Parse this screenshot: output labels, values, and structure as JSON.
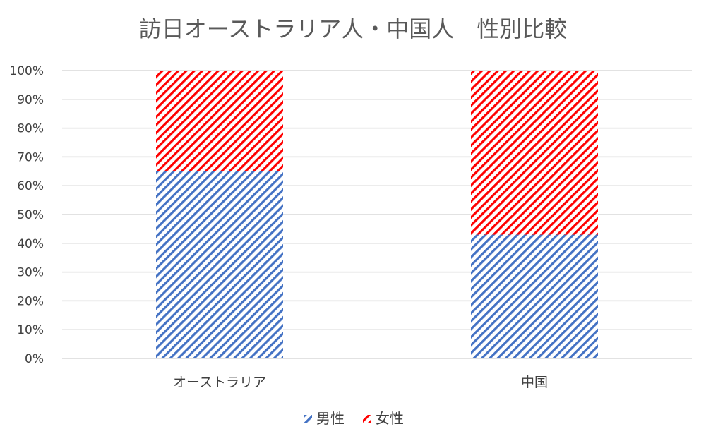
{
  "chart_data": {
    "type": "bar",
    "stacked": true,
    "normalized": true,
    "title": "訪日オーストラリア人・中国人　性別比較",
    "categories": [
      "オーストラリア",
      "中国"
    ],
    "series": [
      {
        "name": "男性",
        "values": [
          65,
          43
        ],
        "color": "#4472c4"
      },
      {
        "name": "女性",
        "values": [
          35,
          57
        ],
        "color": "#ff0000"
      }
    ],
    "y_ticks": [
      "0%",
      "10%",
      "20%",
      "30%",
      "40%",
      "50%",
      "60%",
      "70%",
      "80%",
      "90%",
      "100%"
    ],
    "ylim": [
      0,
      100
    ],
    "grid": true,
    "legend_position": "bottom",
    "pattern": "diagonal-hatch"
  }
}
